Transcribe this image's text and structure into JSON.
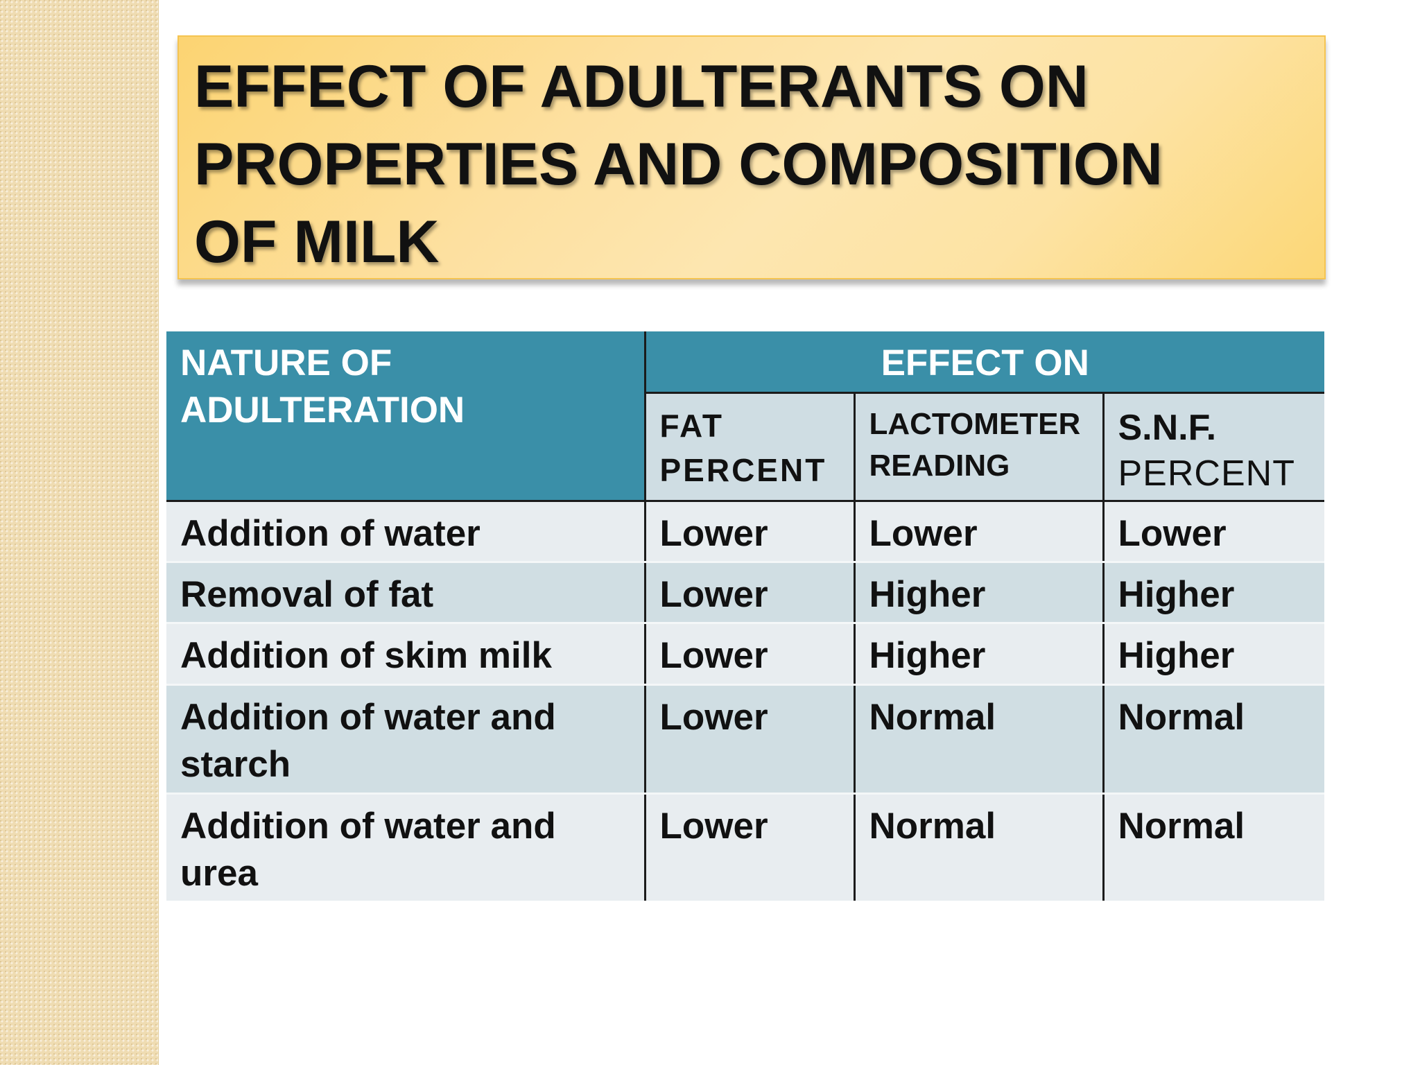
{
  "title": {
    "line1": "EFFECT OF ADULTERANTS ON",
    "line2": "PROPERTIES AND COMPOSITION",
    "line3": "OF MILK"
  },
  "table": {
    "header": {
      "nature_line1": "NATURE OF",
      "nature_line2": "ADULTERATION",
      "effect_on": "EFFECT ON",
      "fat_line1": "FAT",
      "fat_line2": "PERCENT",
      "lacto_line1": "LACTOMETER",
      "lacto_line2": "READING",
      "snf_line1": "S.N.F.",
      "snf_line2": "PERCENT"
    },
    "rows": [
      {
        "nature": "Addition of water",
        "fat": "Lower",
        "lactometer": "Lower",
        "snf": "Lower"
      },
      {
        "nature": "Removal of fat",
        "fat": "Lower",
        "lactometer": "Higher",
        "snf": "Higher"
      },
      {
        "nature": "Addition of skim milk",
        "fat": "Lower",
        "lactometer": "Higher",
        "snf": "Higher"
      },
      {
        "nature_line1": "Addition of water and",
        "nature_line2": "starch",
        "fat": "Lower",
        "lactometer": "Normal",
        "snf": "Normal"
      },
      {
        "nature_line1": "Addition of water and",
        "nature_line2": "urea",
        "fat": "Lower",
        "lactometer": "Normal",
        "snf": "Normal"
      }
    ]
  },
  "colors": {
    "header_teal": "#3a8fa8",
    "subheader_bg": "#cfdde3",
    "row_light": "#e8edf0",
    "row_dark": "#d0dee3",
    "title_box": "#fde0a0",
    "side_strip": "#efdcb2"
  }
}
